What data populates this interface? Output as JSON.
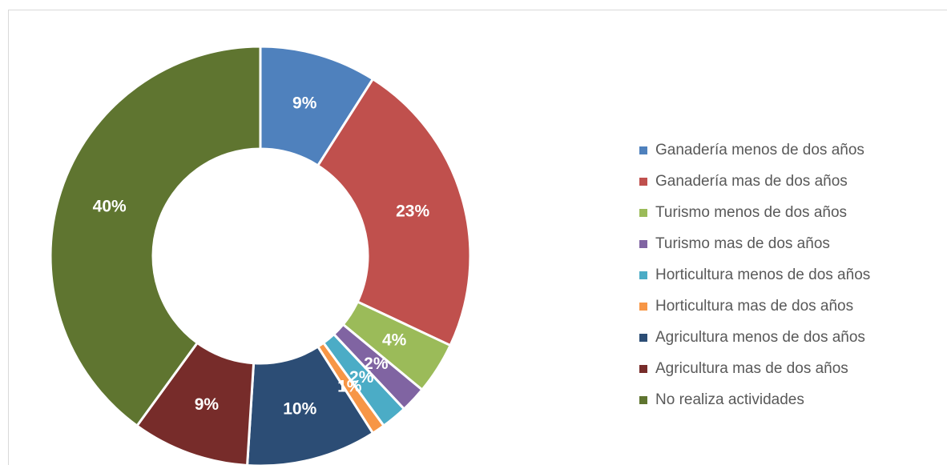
{
  "chart_data": {
    "type": "donut",
    "categories": [
      "Ganadería menos de dos años",
      "Ganadería mas de dos años",
      "Turismo menos de dos años",
      "Turismo mas de dos años",
      "Horticultura menos de dos años",
      "Horticultura mas de dos años",
      "Agricultura menos de dos años",
      "Agricultura mas de dos años",
      "No realiza actividades"
    ],
    "values": [
      9,
      23,
      4,
      2,
      2,
      1,
      10,
      9,
      40
    ],
    "value_labels": [
      "9%",
      "23%",
      "4%",
      "2%",
      "2%",
      "1%",
      "10%",
      "9%",
      "40%"
    ],
    "colors": [
      "#4f81bd",
      "#c0504d",
      "#9bbb59",
      "#8064a2",
      "#4bacc6",
      "#f79646",
      "#2c4d75",
      "#772c2a",
      "#5f7530"
    ],
    "legend": "right"
  }
}
